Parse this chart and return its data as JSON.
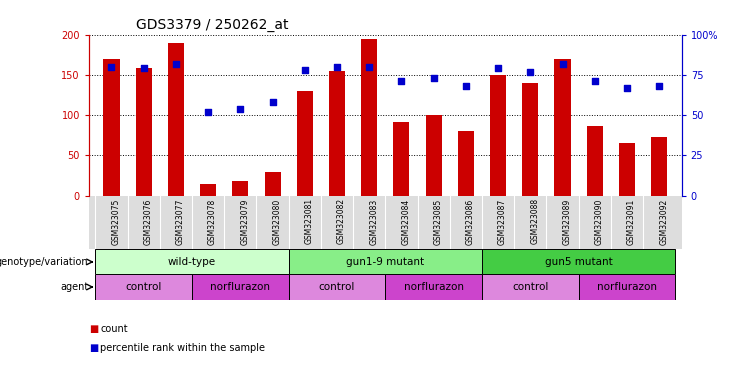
{
  "title": "GDS3379 / 250262_at",
  "samples": [
    "GSM323075",
    "GSM323076",
    "GSM323077",
    "GSM323078",
    "GSM323079",
    "GSM323080",
    "GSM323081",
    "GSM323082",
    "GSM323083",
    "GSM323084",
    "GSM323085",
    "GSM323086",
    "GSM323087",
    "GSM323088",
    "GSM323089",
    "GSM323090",
    "GSM323091",
    "GSM323092"
  ],
  "counts": [
    170,
    158,
    190,
    15,
    18,
    30,
    130,
    155,
    195,
    92,
    100,
    80,
    150,
    140,
    170,
    87,
    65,
    73
  ],
  "percentiles": [
    80,
    79,
    82,
    52,
    54,
    58,
    78,
    80,
    80,
    71,
    73,
    68,
    79,
    77,
    82,
    71,
    67,
    68
  ],
  "ylim_left": [
    0,
    200
  ],
  "ylim_right": [
    0,
    100
  ],
  "yticks_left": [
    0,
    50,
    100,
    150,
    200
  ],
  "yticks_right": [
    0,
    25,
    50,
    75,
    100
  ],
  "bar_color": "#cc0000",
  "dot_color": "#0000cc",
  "genotype_groups": [
    {
      "label": "wild-type",
      "start": 0,
      "end": 5,
      "color": "#ccffcc"
    },
    {
      "label": "gun1-9 mutant",
      "start": 6,
      "end": 11,
      "color": "#88ee88"
    },
    {
      "label": "gun5 mutant",
      "start": 12,
      "end": 17,
      "color": "#44cc44"
    }
  ],
  "agent_groups": [
    {
      "label": "control",
      "start": 0,
      "end": 2,
      "color": "#dd88dd"
    },
    {
      "label": "norflurazon",
      "start": 3,
      "end": 5,
      "color": "#cc44cc"
    },
    {
      "label": "control",
      "start": 6,
      "end": 8,
      "color": "#dd88dd"
    },
    {
      "label": "norflurazon",
      "start": 9,
      "end": 11,
      "color": "#cc44cc"
    },
    {
      "label": "control",
      "start": 12,
      "end": 14,
      "color": "#dd88dd"
    },
    {
      "label": "norflurazon",
      "start": 15,
      "end": 17,
      "color": "#cc44cc"
    }
  ],
  "left_axis_color": "#cc0000",
  "right_axis_color": "#0000cc",
  "bg_color": "#ffffff",
  "plot_bg_color": "#ffffff",
  "xtick_bg_color": "#dddddd",
  "title_fontsize": 10,
  "tick_fontsize": 7,
  "label_fontsize": 7,
  "bar_width": 0.5
}
